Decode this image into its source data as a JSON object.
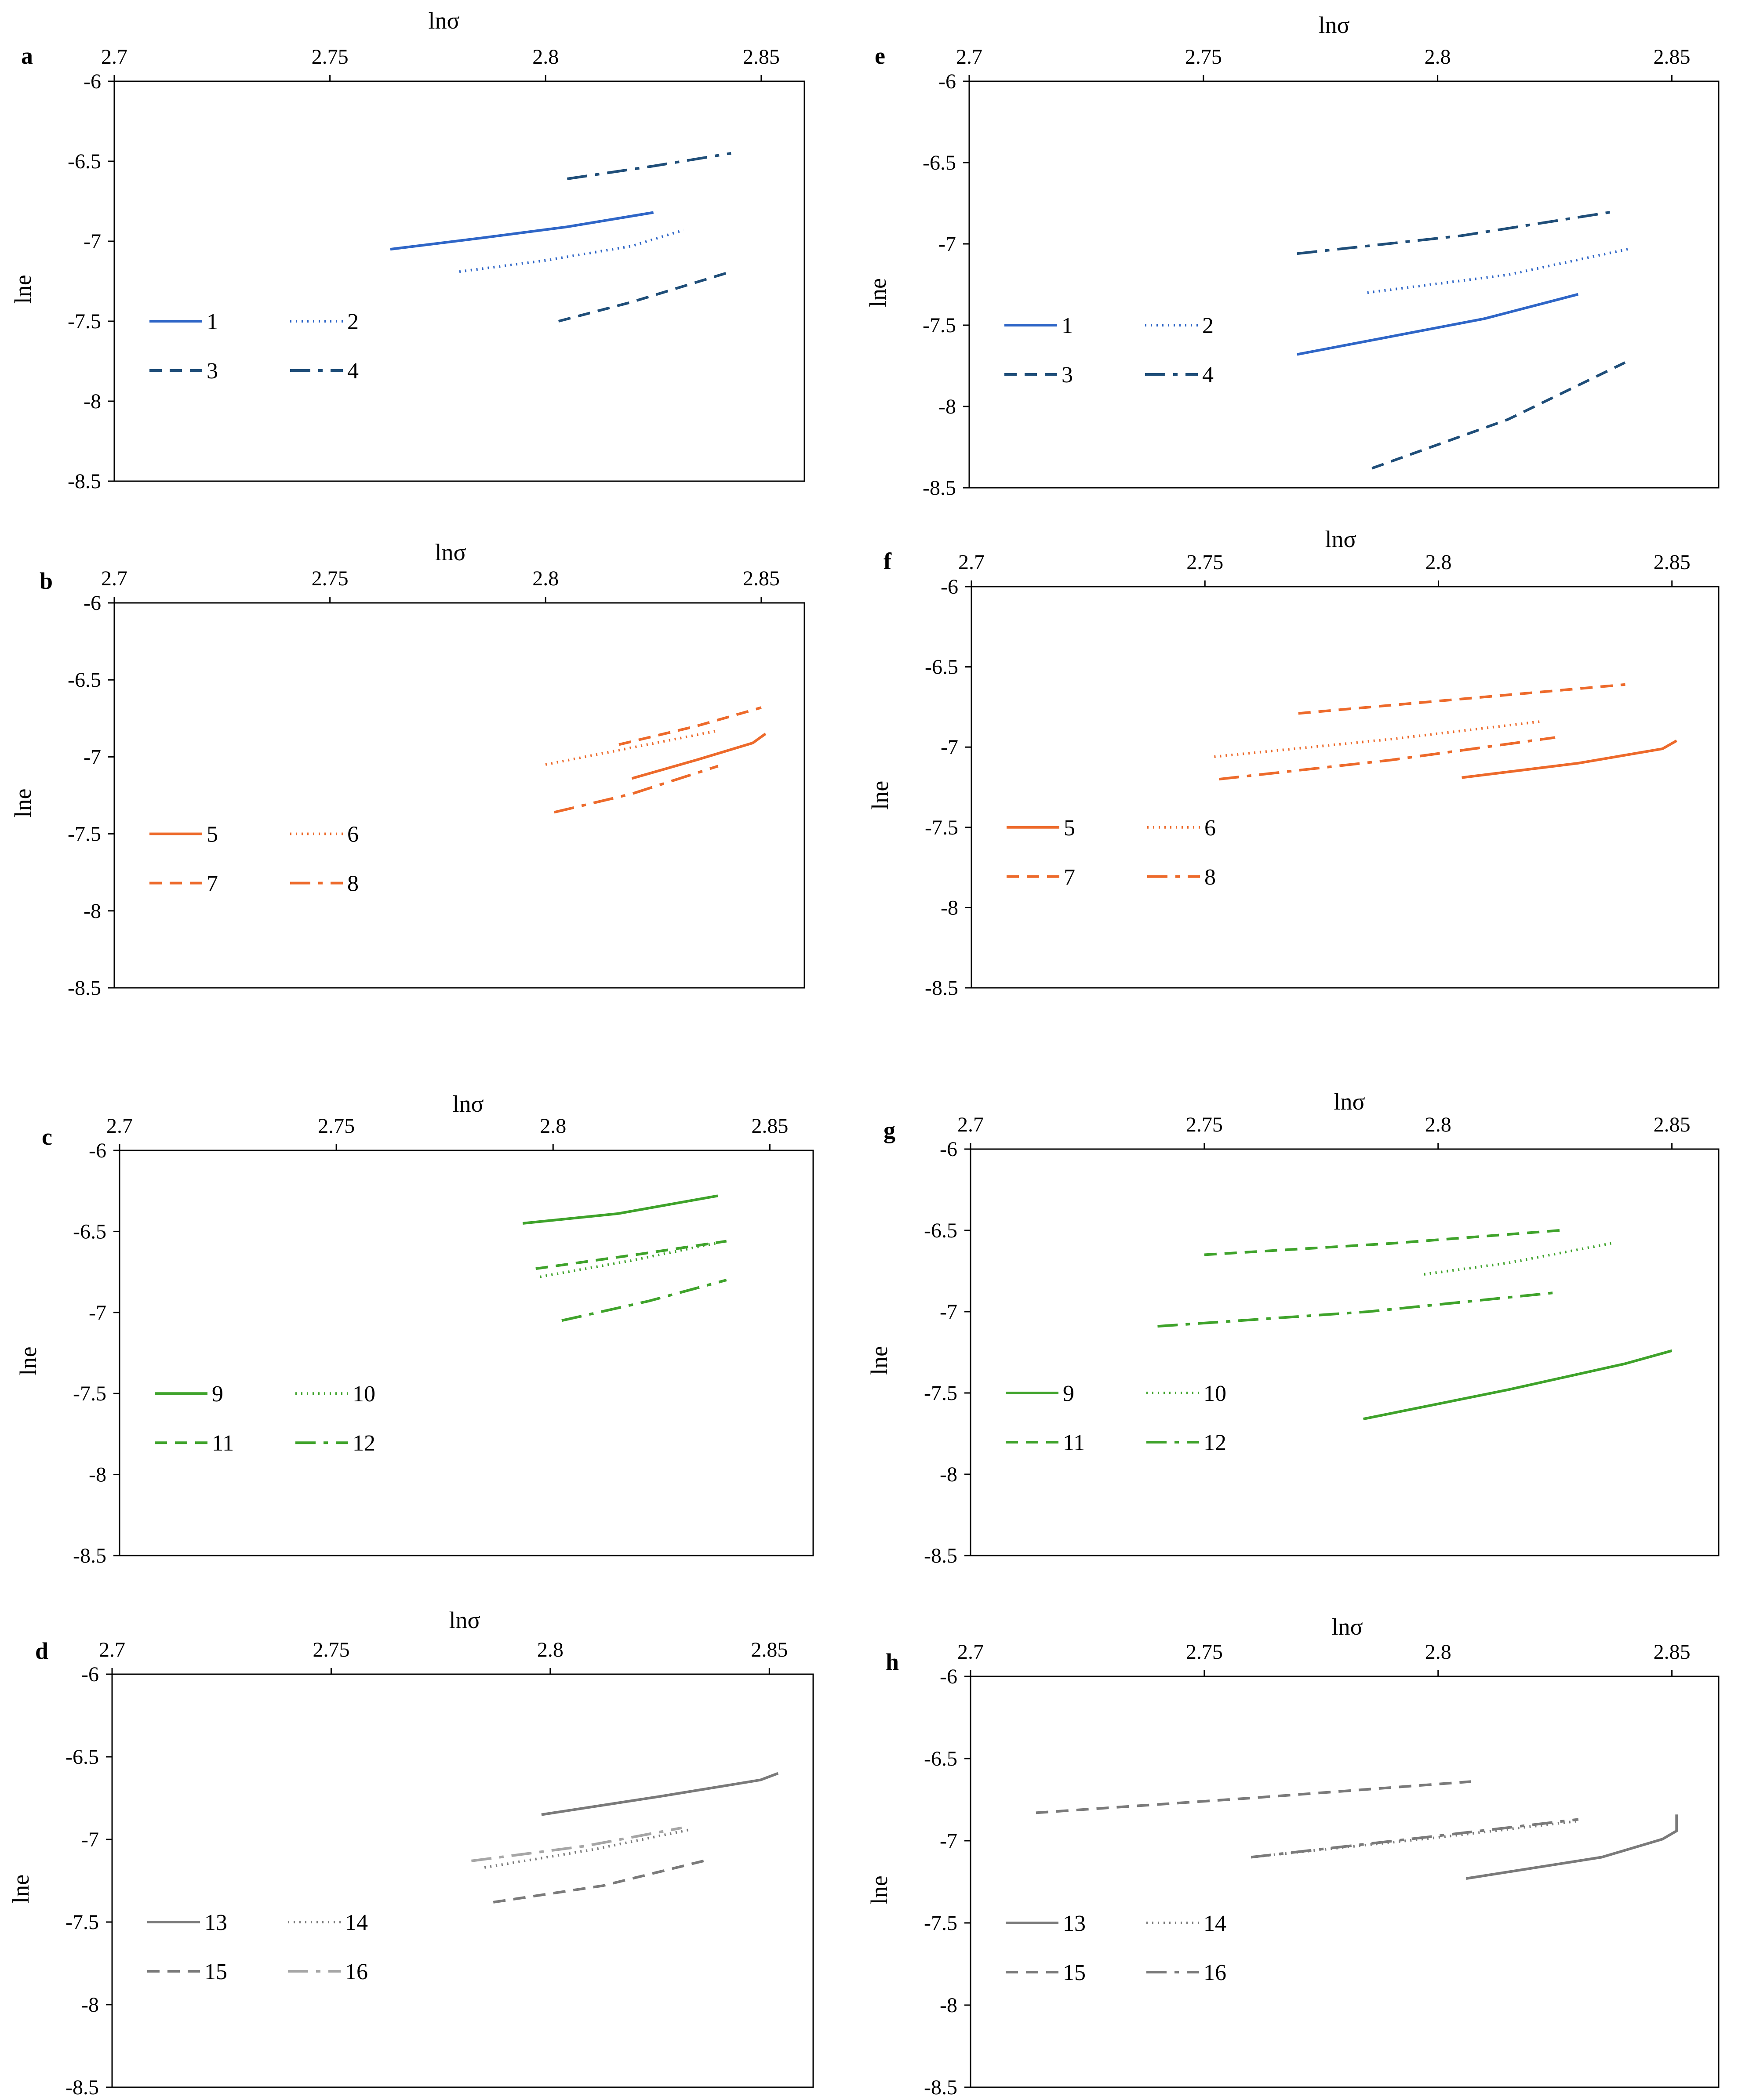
{
  "figure": {
    "x_axis_label": "lnσ",
    "y_axis_label": "lne"
  },
  "chart_data": [
    {
      "panel": "a",
      "type": "line",
      "xlabel": "lnσ",
      "ylabel": "lne",
      "xlim": [
        2.7,
        2.86
      ],
      "ylim": [
        -8.5,
        -6
      ],
      "xticks": [
        "2.7",
        "2.75",
        "2.8",
        "2.85"
      ],
      "yticks": [
        "-6",
        "-6.5",
        "-7",
        "-7.5",
        "-8",
        "-8.5"
      ],
      "series": [
        {
          "name": "1",
          "color": "#2f66c7",
          "dash": "solid",
          "x": [
            2.764,
            2.785,
            2.805,
            2.825
          ],
          "y": [
            -7.05,
            -6.98,
            -6.91,
            -6.82
          ]
        },
        {
          "name": "2",
          "color": "#2f66c7",
          "dash": "dotted",
          "x": [
            2.78,
            2.8,
            2.82,
            2.832
          ],
          "y": [
            -7.19,
            -7.12,
            -7.03,
            -6.93
          ]
        },
        {
          "name": "3",
          "color": "#1f4e79",
          "dash": "dashed",
          "x": [
            2.803,
            2.82,
            2.843
          ],
          "y": [
            -7.5,
            -7.38,
            -7.19
          ]
        },
        {
          "name": "4",
          "color": "#1f4e79",
          "dash": "dashdot",
          "x": [
            2.805,
            2.825,
            2.843
          ],
          "y": [
            -6.61,
            -6.53,
            -6.45
          ]
        }
      ]
    },
    {
      "panel": "b",
      "type": "line",
      "xlabel": "lnσ",
      "ylabel": "lne",
      "xlim": [
        2.7,
        2.86
      ],
      "ylim": [
        -8.5,
        -6
      ],
      "xticks": [
        "2.7",
        "2.75",
        "2.8",
        "2.85"
      ],
      "yticks": [
        "-6",
        "-6.5",
        "-7",
        "-7.5",
        "-8",
        "-8.5"
      ],
      "series": [
        {
          "name": "5",
          "color": "#ed6a2b",
          "dash": "solid",
          "x": [
            2.82,
            2.835,
            2.848,
            2.851
          ],
          "y": [
            -7.14,
            -7.02,
            -6.91,
            -6.85
          ]
        },
        {
          "name": "6",
          "color": "#ed6a2b",
          "dash": "dotted",
          "x": [
            2.8,
            2.82,
            2.84
          ],
          "y": [
            -7.05,
            -6.94,
            -6.83
          ]
        },
        {
          "name": "7",
          "color": "#ed6a2b",
          "dash": "dashed",
          "x": [
            2.817,
            2.835,
            2.85
          ],
          "y": [
            -6.92,
            -6.8,
            -6.68
          ]
        },
        {
          "name": "8",
          "color": "#ed6a2b",
          "dash": "dashdot",
          "x": [
            2.802,
            2.82,
            2.84
          ],
          "y": [
            -7.36,
            -7.24,
            -7.06
          ]
        }
      ]
    },
    {
      "panel": "c",
      "type": "line",
      "xlabel": "lnσ",
      "ylabel": "lne",
      "xlim": [
        2.7,
        2.86
      ],
      "ylim": [
        -8.5,
        -6
      ],
      "xticks": [
        "2.7",
        "2.75",
        "2.8",
        "2.85"
      ],
      "yticks": [
        "-6",
        "-6.5",
        "-7",
        "-7.5",
        "-8",
        "-8.5"
      ],
      "series": [
        {
          "name": "9",
          "color": "#3fa32b",
          "dash": "solid",
          "x": [
            2.793,
            2.815,
            2.838
          ],
          "y": [
            -6.45,
            -6.39,
            -6.28
          ]
        },
        {
          "name": "10",
          "color": "#3fa32b",
          "dash": "dotted",
          "x": [
            2.797,
            2.818,
            2.838
          ],
          "y": [
            -6.78,
            -6.68,
            -6.57
          ]
        },
        {
          "name": "11",
          "color": "#3fa32b",
          "dash": "dashed",
          "x": [
            2.796,
            2.82,
            2.84
          ],
          "y": [
            -6.73,
            -6.64,
            -6.56
          ]
        },
        {
          "name": "12",
          "color": "#3fa32b",
          "dash": "dashdot",
          "x": [
            2.802,
            2.822,
            2.84
          ],
          "y": [
            -7.05,
            -6.93,
            -6.8
          ]
        }
      ]
    },
    {
      "panel": "d",
      "type": "line",
      "xlabel": "lnσ",
      "ylabel": "lne",
      "xlim": [
        2.7,
        2.86
      ],
      "ylim": [
        -8.5,
        -6
      ],
      "xticks": [
        "2.7",
        "2.75",
        "2.8",
        "2.85"
      ],
      "yticks": [
        "-6",
        "-6.5",
        "-7",
        "-7.5",
        "-8",
        "-8.5"
      ],
      "series": [
        {
          "name": "13",
          "color": "#7a7a7a",
          "dash": "solid",
          "x": [
            2.798,
            2.825,
            2.848,
            2.852
          ],
          "y": [
            -6.85,
            -6.74,
            -6.64,
            -6.6
          ]
        },
        {
          "name": "14",
          "color": "#7a7a7a",
          "dash": "dotted",
          "x": [
            2.785,
            2.81,
            2.832
          ],
          "y": [
            -7.17,
            -7.06,
            -6.94
          ]
        },
        {
          "name": "15",
          "color": "#7a7a7a",
          "dash": "dashed",
          "x": [
            2.787,
            2.812,
            2.835
          ],
          "y": [
            -7.38,
            -7.28,
            -7.13
          ]
        },
        {
          "name": "16",
          "color": "#a6a6a6",
          "dash": "dashdot",
          "x": [
            2.782,
            2.808,
            2.83
          ],
          "y": [
            -7.13,
            -7.04,
            -6.93
          ]
        }
      ]
    },
    {
      "panel": "e",
      "type": "line",
      "xlabel": "lnσ",
      "ylabel": "lne",
      "xlim": [
        2.7,
        2.86
      ],
      "ylim": [
        -8.5,
        -6
      ],
      "xticks": [
        "2.7",
        "2.75",
        "2.8",
        "2.85"
      ],
      "yticks": [
        "-6",
        "-6.5",
        "-7",
        "-7.5",
        "-8",
        "-8.5"
      ],
      "series": [
        {
          "name": "1",
          "color": "#2f66c7",
          "dash": "solid",
          "x": [
            2.77,
            2.79,
            2.81,
            2.83
          ],
          "y": [
            -7.68,
            -7.57,
            -7.46,
            -7.31
          ]
        },
        {
          "name": "2",
          "color": "#2f66c7",
          "dash": "dotted",
          "x": [
            2.785,
            2.815,
            2.841
          ],
          "y": [
            -7.3,
            -7.19,
            -7.03
          ]
        },
        {
          "name": "3",
          "color": "#1f4e79",
          "dash": "dashed",
          "x": [
            2.786,
            2.815,
            2.84
          ],
          "y": [
            -8.38,
            -8.08,
            -7.73
          ]
        },
        {
          "name": "4",
          "color": "#1f4e79",
          "dash": "dashdot",
          "x": [
            2.77,
            2.805,
            2.838
          ],
          "y": [
            -7.06,
            -6.95,
            -6.8
          ]
        }
      ]
    },
    {
      "panel": "f",
      "type": "line",
      "xlabel": "lnσ",
      "ylabel": "lne",
      "xlim": [
        2.7,
        2.86
      ],
      "ylim": [
        -8.5,
        -6
      ],
      "xticks": [
        "2.7",
        "2.75",
        "2.8",
        "2.85"
      ],
      "yticks": [
        "-6",
        "-6.5",
        "-7",
        "-7.5",
        "-8",
        "-8.5"
      ],
      "series": [
        {
          "name": "5",
          "color": "#ed6a2b",
          "dash": "solid",
          "x": [
            2.805,
            2.83,
            2.848,
            2.851
          ],
          "y": [
            -7.19,
            -7.1,
            -7.01,
            -6.96
          ]
        },
        {
          "name": "6",
          "color": "#ed6a2b",
          "dash": "dotted",
          "x": [
            2.752,
            2.79,
            2.822
          ],
          "y": [
            -7.06,
            -6.95,
            -6.84
          ]
        },
        {
          "name": "7",
          "color": "#ed6a2b",
          "dash": "dashed",
          "x": [
            2.77,
            2.805,
            2.84
          ],
          "y": [
            -6.79,
            -6.7,
            -6.61
          ]
        },
        {
          "name": "8",
          "color": "#ed6a2b",
          "dash": "dashdot",
          "x": [
            2.753,
            2.79,
            2.825
          ],
          "y": [
            -7.2,
            -7.08,
            -6.94
          ]
        }
      ]
    },
    {
      "panel": "g",
      "type": "line",
      "xlabel": "lnσ",
      "ylabel": "lne",
      "xlim": [
        2.7,
        2.86
      ],
      "ylim": [
        -8.5,
        -6
      ],
      "xticks": [
        "2.7",
        "2.75",
        "2.8",
        "2.85"
      ],
      "yticks": [
        "-6",
        "-6.5",
        "-7",
        "-7.5",
        "-8",
        "-8.5"
      ],
      "series": [
        {
          "name": "9",
          "color": "#3fa32b",
          "dash": "solid",
          "x": [
            2.784,
            2.815,
            2.84,
            2.85
          ],
          "y": [
            -7.66,
            -7.48,
            -7.32,
            -7.24
          ]
        },
        {
          "name": "10",
          "color": "#3fa32b",
          "dash": "dotted",
          "x": [
            2.797,
            2.815,
            2.837
          ],
          "y": [
            -6.77,
            -6.7,
            -6.58
          ]
        },
        {
          "name": "11",
          "color": "#3fa32b",
          "dash": "dashed",
          "x": [
            2.75,
            2.79,
            2.826
          ],
          "y": [
            -6.65,
            -6.58,
            -6.5
          ]
        },
        {
          "name": "12",
          "color": "#3fa32b",
          "dash": "dashdot",
          "x": [
            2.74,
            2.785,
            2.826
          ],
          "y": [
            -7.09,
            -7.0,
            -6.88
          ]
        }
      ]
    },
    {
      "panel": "h",
      "type": "line",
      "xlabel": "lnσ",
      "ylabel": "lne",
      "xlim": [
        2.7,
        2.86
      ],
      "ylim": [
        -8.5,
        -6
      ],
      "xticks": [
        "2.7",
        "2.75",
        "2.8",
        "2.85"
      ],
      "yticks": [
        "-6",
        "-6.5",
        "-7",
        "-7.5",
        "-8",
        "-8.5"
      ],
      "series": [
        {
          "name": "13",
          "color": "#7a7a7a",
          "dash": "solid",
          "x": [
            2.806,
            2.835,
            2.848,
            2.851,
            2.851
          ],
          "y": [
            -7.23,
            -7.1,
            -6.99,
            -6.94,
            -6.84
          ]
        },
        {
          "name": "14",
          "color": "#7a7a7a",
          "dash": "dotted",
          "x": [
            2.76,
            2.8,
            2.83
          ],
          "y": [
            -7.1,
            -6.98,
            -6.88
          ]
        },
        {
          "name": "15",
          "color": "#7a7a7a",
          "dash": "dashed",
          "x": [
            2.714,
            2.76,
            2.807
          ],
          "y": [
            -6.83,
            -6.74,
            -6.64
          ]
        },
        {
          "name": "16",
          "color": "#7a7a7a",
          "dash": "dashdot",
          "x": [
            2.76,
            2.8,
            2.83
          ],
          "y": [
            -7.1,
            -6.97,
            -6.87
          ]
        }
      ]
    }
  ]
}
